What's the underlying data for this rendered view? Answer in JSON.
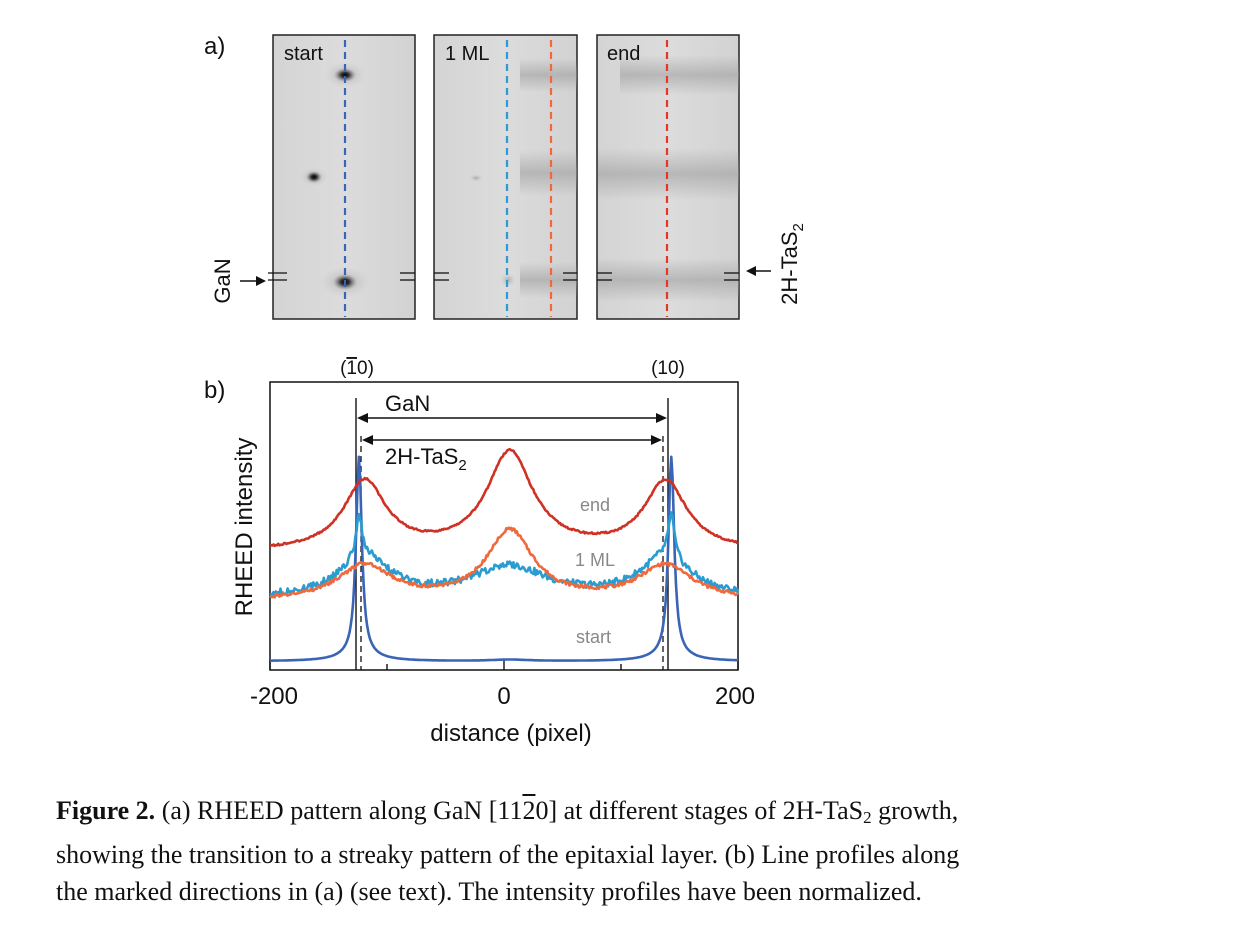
{
  "panel_a": {
    "label": "a)",
    "panels": [
      {
        "label": "start"
      },
      {
        "label": "1 ML"
      },
      {
        "label": "end"
      }
    ],
    "left_marker": "GaN",
    "right_marker_main": "2H-TaS",
    "right_marker_sub": "2",
    "colors": {
      "start_line": "#3a64b5",
      "ml_blue": "#2a9ccf",
      "ml_orange": "#ee6a3e",
      "end_line": "#dd3a2a"
    }
  },
  "panel_b": {
    "label": "b)",
    "peak_left_pre": "(",
    "peak_left_bar": "1",
    "peak_left_post": "0)",
    "peak_right": "(10)",
    "gan_arrow_label": "GaN",
    "tas_arrow_label_main": "2H-TaS",
    "tas_arrow_label_sub": "2",
    "curve_labels": {
      "end": "end",
      "ml": "1 ML",
      "start": "start"
    }
  },
  "chart_data": {
    "type": "line",
    "xlabel": "distance (pixel)",
    "ylabel": "RHEED intensity",
    "xlim": [
      -200,
      200
    ],
    "xticks": [
      -200,
      0,
      200
    ],
    "xtick_labels": [
      "-200",
      "0",
      "200"
    ],
    "gan_peaks": [
      -124,
      143
    ],
    "tas_peaks": [
      -119,
      138
    ],
    "series": [
      {
        "name": "start",
        "color": "#3a64b5",
        "peaks": [
          [
            -124,
            0.72
          ],
          [
            143,
            0.72
          ]
        ],
        "peak_width": 3,
        "baseline": 0.03
      },
      {
        "name": "1 ML",
        "color": "#2a9ccf",
        "peaks": [
          [
            -124,
            0.4
          ],
          [
            143,
            0.4
          ],
          [
            -119,
            0.36
          ],
          [
            138,
            0.36
          ],
          [
            5,
            0.38
          ]
        ],
        "baseline": 0.28
      },
      {
        "name": "1 ML",
        "color": "#ee6a3e",
        "peaks": [
          [
            -119,
            0.36
          ],
          [
            138,
            0.36
          ],
          [
            5,
            0.5
          ]
        ],
        "baseline": 0.28
      },
      {
        "name": "end",
        "color": "#cf3125",
        "peaks": [
          [
            -119,
            0.68
          ],
          [
            138,
            0.68
          ],
          [
            5,
            0.78
          ]
        ],
        "baseline": 0.5
      }
    ]
  },
  "caption": {
    "bold": "Figure 2.",
    "l1a": " (a) RHEED pattern along GaN [11",
    "l1bar": "2",
    "l1b": "0] at different stages of 2H-TaS",
    "l1sub": "2",
    "l1c": " growth,",
    "l2": "showing the transition to a streaky pattern of the epitaxial layer. (b) Line profiles along",
    "l3": "the marked directions in (a) (see text). The intensity profiles have been normalized."
  }
}
